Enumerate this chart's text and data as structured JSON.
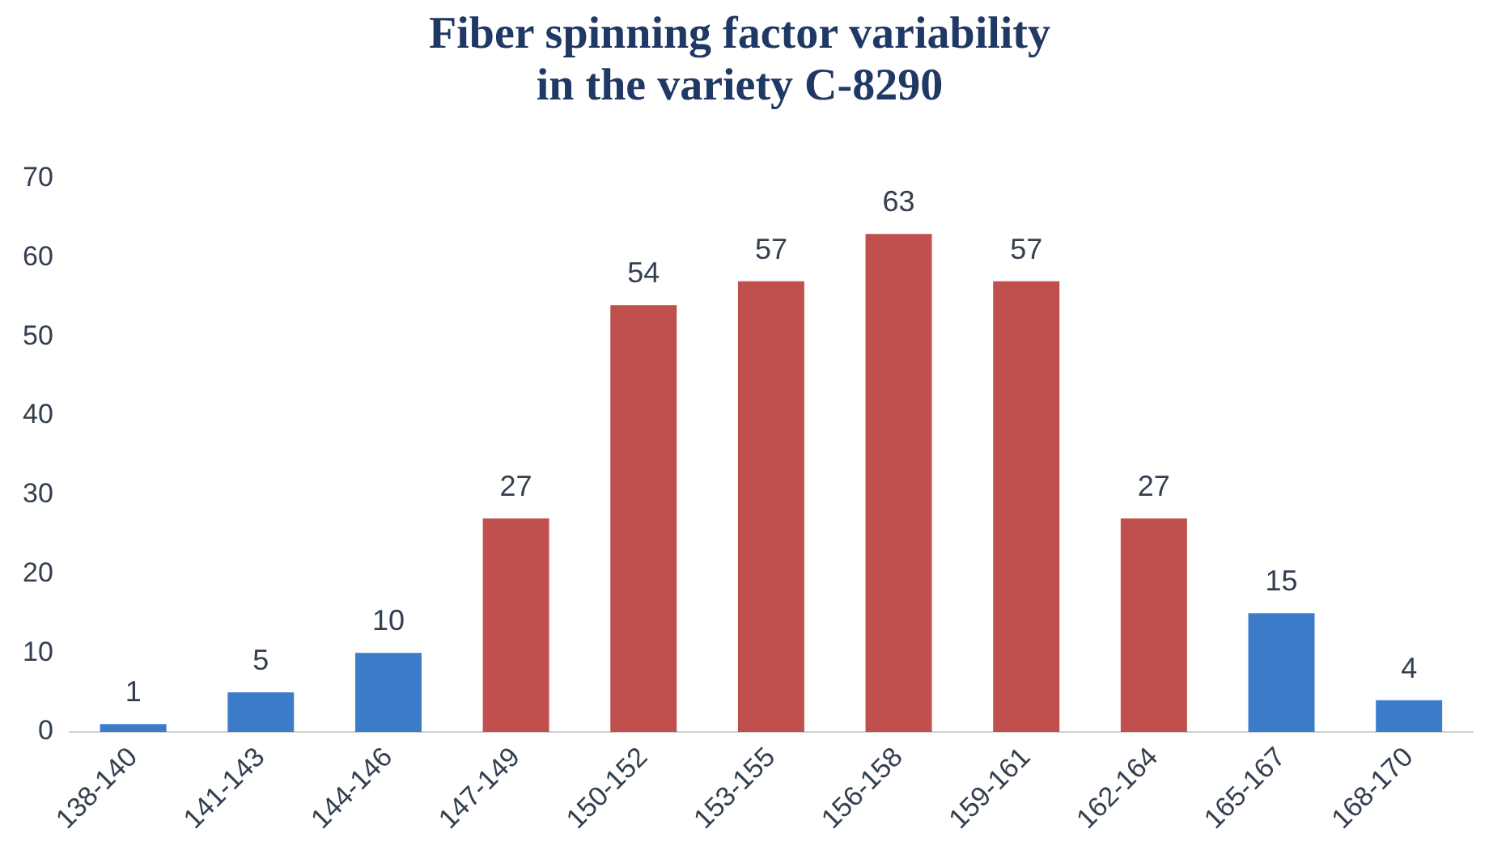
{
  "chart_data": {
    "type": "bar",
    "title": "Fiber spinning factor variability\nin the variety C-8290",
    "categories": [
      "138-140",
      "141-143",
      "144-146",
      "147-149",
      "150-152",
      "153-155",
      "156-158",
      "159-161",
      "162-164",
      "165-167",
      "168-170"
    ],
    "values": [
      1,
      5,
      10,
      27,
      54,
      57,
      63,
      57,
      27,
      15,
      4
    ],
    "colors": [
      "#3d7cc9",
      "#3d7cc9",
      "#3d7cc9",
      "#c0504d",
      "#c0504d",
      "#c0504d",
      "#c0504d",
      "#c0504d",
      "#c0504d",
      "#3d7cc9",
      "#3d7cc9"
    ],
    "ylim": [
      0,
      70
    ],
    "yticks": [
      0,
      10,
      20,
      30,
      40,
      50,
      60,
      70
    ],
    "grid": false,
    "data_labels": true,
    "legend": false
  }
}
